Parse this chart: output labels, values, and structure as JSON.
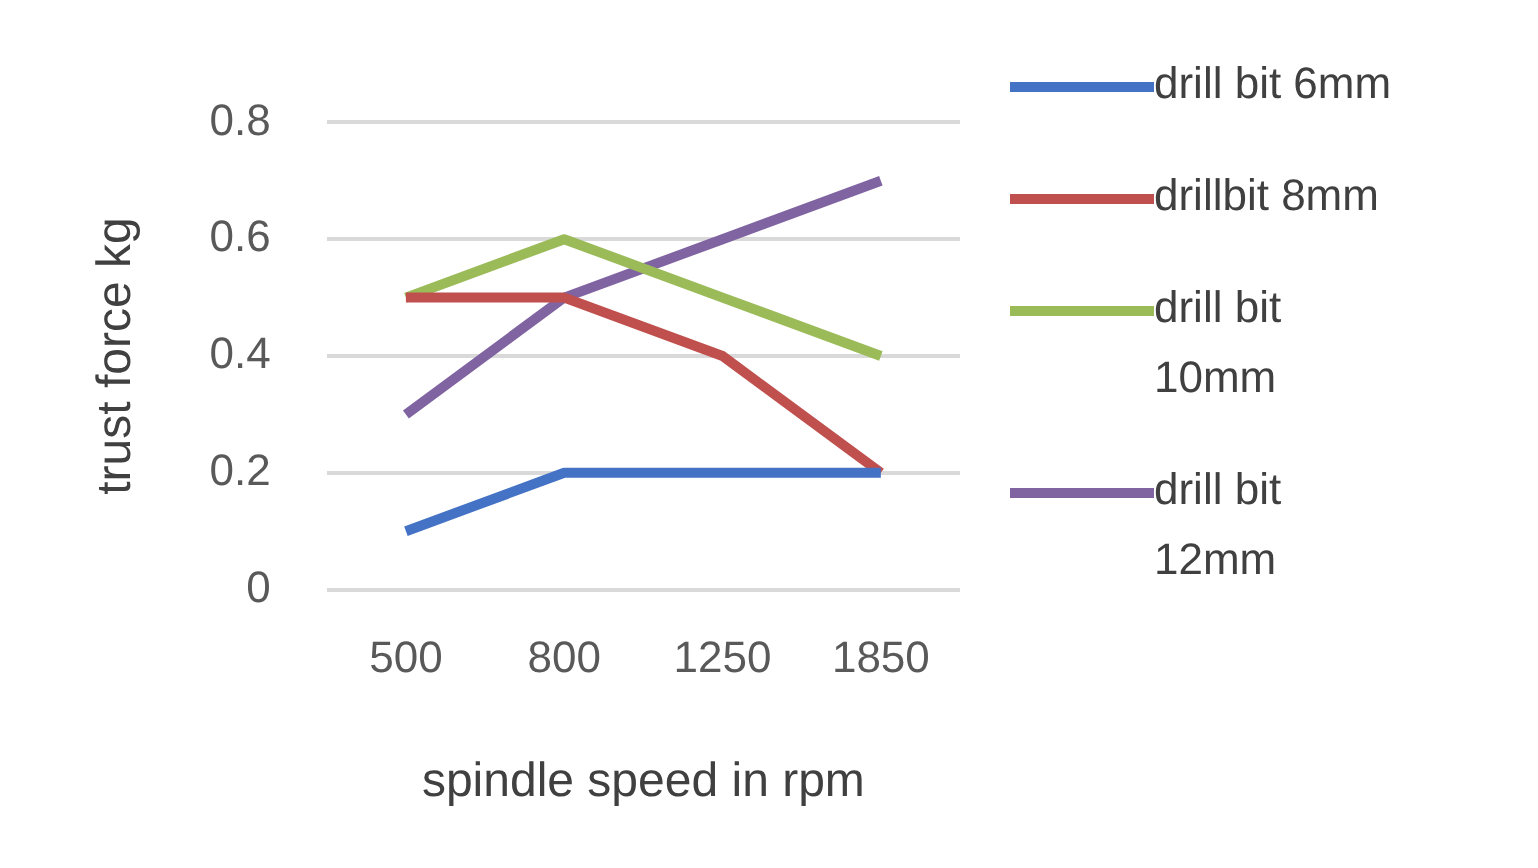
{
  "chart_data": {
    "type": "line",
    "xlabel": "spindle speed in rpm",
    "ylabel": "trust force kg",
    "categories": [
      "500",
      "800",
      "1250",
      "1850"
    ],
    "series": [
      {
        "name": "drill bit 6mm",
        "color": "#4472c4",
        "values": [
          0.1,
          0.2,
          0.2,
          0.2
        ]
      },
      {
        "name": "drillbit 8mm",
        "color": "#c0504d",
        "values": [
          0.5,
          0.5,
          0.4,
          0.2
        ]
      },
      {
        "name": "drill bit 10mm",
        "color": "#9bbb59",
        "values": [
          0.5,
          0.6,
          0.5,
          0.4
        ]
      },
      {
        "name": "drill bit 12mm",
        "color": "#8064a2",
        "values": [
          0.3,
          0.5,
          0.6,
          0.7
        ]
      }
    ],
    "ylim": [
      0,
      0.8
    ],
    "yticks": [
      0,
      0.2,
      0.4,
      0.6,
      0.8
    ],
    "grid": "y",
    "legend": "right"
  }
}
